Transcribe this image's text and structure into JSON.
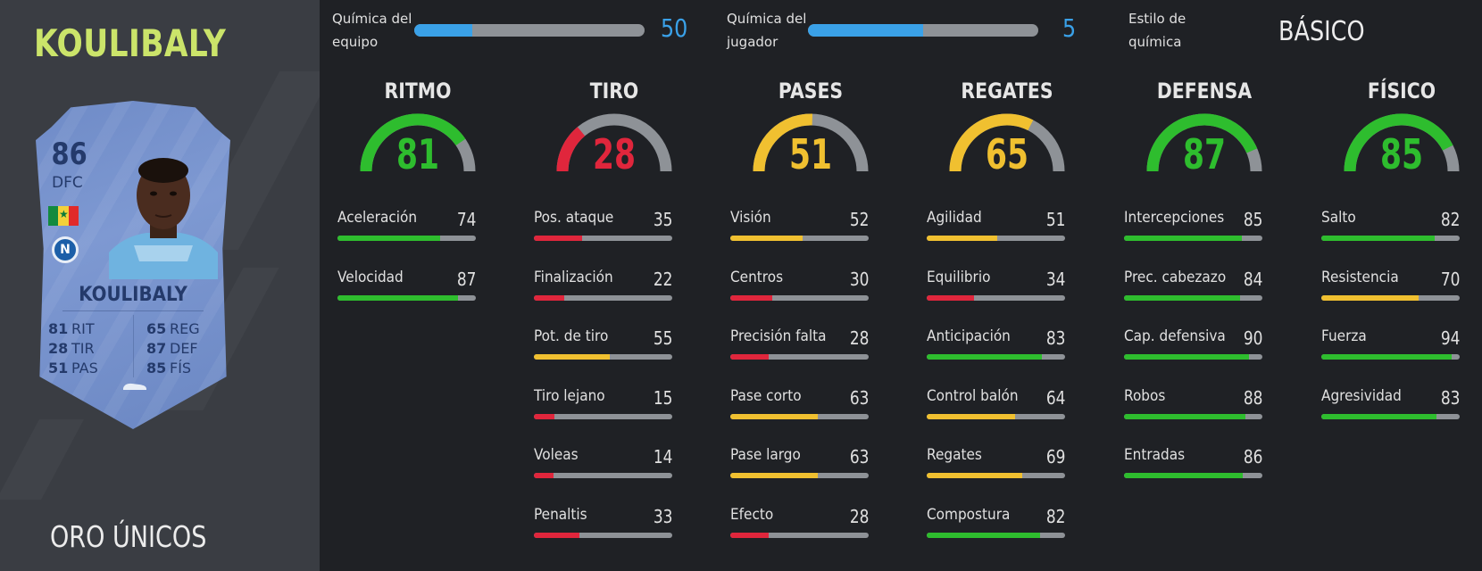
{
  "player": {
    "title_name": "KOULIBALY",
    "card_type": "ORO ÚNICOS"
  },
  "card": {
    "rating": "86",
    "position": "DFC",
    "name": "KOULIBALY",
    "flag_colors": [
      "#138a3e",
      "#f3d13a",
      "#e12a2a"
    ],
    "club_icon": "napoli-badge-icon",
    "club_letter": "N",
    "stats_left": [
      {
        "value": "81",
        "label": "RIT"
      },
      {
        "value": "28",
        "label": "TIR"
      },
      {
        "value": "51",
        "label": "PAS"
      }
    ],
    "stats_right": [
      {
        "value": "65",
        "label": "REG"
      },
      {
        "value": "87",
        "label": "DEF"
      },
      {
        "value": "85",
        "label": "FÍS"
      }
    ]
  },
  "chemistry": {
    "team": {
      "label_line1": "Química del",
      "label_line2": "equipo",
      "value": "50",
      "max": 100
    },
    "player": {
      "label_line1": "Química del",
      "label_line2": "jugador",
      "value": "5",
      "max": 10
    },
    "style": {
      "label_line1": "Estilo de",
      "label_line2": "química",
      "value": "BÁSICO"
    },
    "bar_color": "#3aa1e8"
  },
  "colors": {
    "green": "#2ebd2e",
    "yellow": "#f0c030",
    "red": "#e0263c",
    "track": "#8e9297",
    "title_green": "#cbe46a"
  },
  "columns": [
    {
      "title": "RITMO",
      "value": "81",
      "tier": "green",
      "attrs": [
        {
          "name": "Aceleración",
          "value": "74",
          "tier": "green"
        },
        {
          "name": "Velocidad",
          "value": "87",
          "tier": "green"
        }
      ]
    },
    {
      "title": "TIRO",
      "value": "28",
      "tier": "red",
      "attrs": [
        {
          "name": "Pos. ataque",
          "value": "35",
          "tier": "red"
        },
        {
          "name": "Finalización",
          "value": "22",
          "tier": "red"
        },
        {
          "name": "Pot. de tiro",
          "value": "55",
          "tier": "yellow"
        },
        {
          "name": "Tiro lejano",
          "value": "15",
          "tier": "red"
        },
        {
          "name": "Voleas",
          "value": "14",
          "tier": "red"
        },
        {
          "name": "Penaltis",
          "value": "33",
          "tier": "red"
        }
      ]
    },
    {
      "title": "PASES",
      "value": "51",
      "tier": "yellow",
      "attrs": [
        {
          "name": "Visión",
          "value": "52",
          "tier": "yellow"
        },
        {
          "name": "Centros",
          "value": "30",
          "tier": "red"
        },
        {
          "name": "Precisión falta",
          "value": "28",
          "tier": "red"
        },
        {
          "name": "Pase corto",
          "value": "63",
          "tier": "yellow"
        },
        {
          "name": "Pase largo",
          "value": "63",
          "tier": "yellow"
        },
        {
          "name": "Efecto",
          "value": "28",
          "tier": "red"
        }
      ]
    },
    {
      "title": "REGATES",
      "value": "65",
      "tier": "yellow",
      "attrs": [
        {
          "name": "Agilidad",
          "value": "51",
          "tier": "yellow"
        },
        {
          "name": "Equilibrio",
          "value": "34",
          "tier": "red"
        },
        {
          "name": "Anticipación",
          "value": "83",
          "tier": "green"
        },
        {
          "name": "Control balón",
          "value": "64",
          "tier": "yellow"
        },
        {
          "name": "Regates",
          "value": "69",
          "tier": "yellow"
        },
        {
          "name": "Compostura",
          "value": "82",
          "tier": "green"
        }
      ]
    },
    {
      "title": "DEFENSA",
      "value": "87",
      "tier": "green",
      "attrs": [
        {
          "name": "Intercepciones",
          "value": "85",
          "tier": "green"
        },
        {
          "name": "Prec. cabezazo",
          "value": "84",
          "tier": "green"
        },
        {
          "name": "Cap. defensiva",
          "value": "90",
          "tier": "green"
        },
        {
          "name": "Robos",
          "value": "88",
          "tier": "green"
        },
        {
          "name": "Entradas",
          "value": "86",
          "tier": "green"
        }
      ]
    },
    {
      "title": "FÍSICO",
      "value": "85",
      "tier": "green",
      "attrs": [
        {
          "name": "Salto",
          "value": "82",
          "tier": "green"
        },
        {
          "name": "Resistencia",
          "value": "70",
          "tier": "yellow"
        },
        {
          "name": "Fuerza",
          "value": "94",
          "tier": "green"
        },
        {
          "name": "Agresividad",
          "value": "83",
          "tier": "green"
        }
      ]
    }
  ]
}
